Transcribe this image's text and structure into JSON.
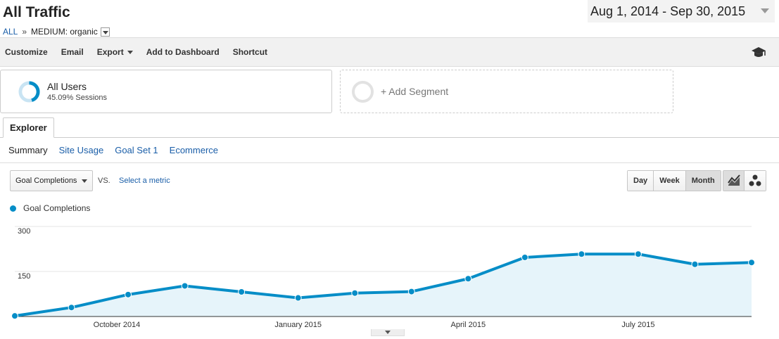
{
  "header": {
    "title": "All Traffic",
    "breadcrumb_all": "ALL",
    "breadcrumb_sep": "»",
    "breadcrumb_medium": "MEDIUM: organic"
  },
  "date_range": "Aug 1, 2014 - Sep 30, 2015",
  "toolbar": {
    "customize": "Customize",
    "email": "Email",
    "export": "Export",
    "add_to_dashboard": "Add to Dashboard",
    "shortcut": "Shortcut",
    "icon": "graduation-cap-icon"
  },
  "segments": {
    "all_users_label": "All Users",
    "all_users_sessions": "45.09% Sessions",
    "all_users_fraction": 0.4509,
    "add_segment": "+ Add Segment"
  },
  "tabs": {
    "explorer": "Explorer"
  },
  "subtabs": [
    "Summary",
    "Site Usage",
    "Goal Set 1",
    "Ecommerce"
  ],
  "metric": {
    "selected": "Goal Completions",
    "vs": "VS.",
    "select_metric": "Select a metric"
  },
  "period": [
    "Day",
    "Week",
    "Month"
  ],
  "period_selected": "Month",
  "colors": {
    "series": "#058dc7",
    "area": "#e6f4fa",
    "link": "#1a5ea8"
  },
  "chart_data": {
    "type": "area",
    "series": [
      {
        "name": "Goal Completions",
        "values": [
          2,
          30,
          73,
          102,
          82,
          62,
          78,
          83,
          126,
          197,
          208,
          208,
          174,
          180
        ]
      }
    ],
    "y_ticks": [
      "300",
      "150"
    ],
    "ylim": [
      0,
      300
    ],
    "x_tick_labels": [
      "October 2014",
      "January 2015",
      "April 2015",
      "July 2015"
    ],
    "x_tick_index": [
      1.8,
      5,
      8,
      11
    ]
  }
}
